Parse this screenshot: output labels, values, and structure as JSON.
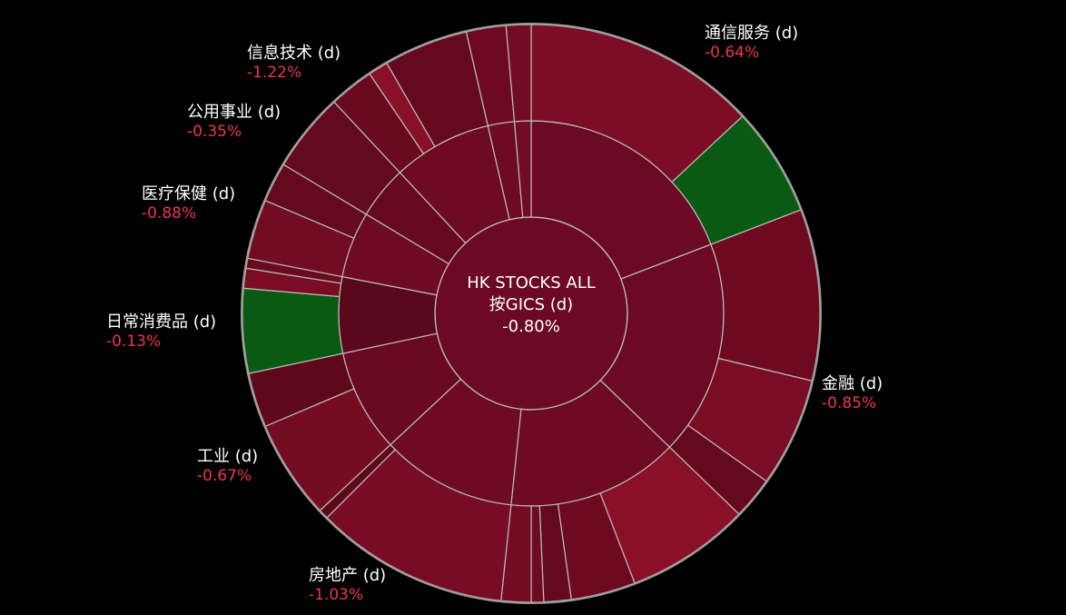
{
  "chart_data": {
    "type": "sunburst",
    "title": "HK STOCKS ALL",
    "subtitle": "按GICS (d)",
    "total_change": -0.8,
    "total_change_label": "-0.80%",
    "root_color": "#6b0a22",
    "change_color": "#e8394a",
    "categories": [
      "通信服务 (d)",
      "金融 (d)",
      null,
      "房地产 (d)",
      "工业 (d)",
      "日常消费品 (d)",
      "医疗保健 (d)",
      "公用事业 (d)",
      "信息技术 (d)",
      null,
      null
    ],
    "values": [
      69,
      65,
      52,
      41,
      31,
      23,
      20,
      16,
      30,
      8,
      5
    ],
    "changes": [
      -0.64,
      -0.85,
      null,
      -1.03,
      -0.67,
      -0.13,
      -0.88,
      -0.35,
      -1.22,
      null,
      null
    ],
    "change_labels": [
      "-0.64%",
      "-0.85%",
      null,
      "-1.03%",
      "-0.67%",
      "-0.13%",
      "-0.88%",
      "-0.35%",
      "-1.22%",
      null,
      null
    ],
    "colors": [
      "#6b0a22",
      "#6b0a22",
      "#6e0a22",
      "#6e0a22",
      "#6a0a20",
      "#5a081c",
      "#6e0a22",
      "#66091f",
      "#6e0a22",
      "#6e0a22",
      "#720c24"
    ],
    "children": [
      {
        "values": [
          47,
          22
        ],
        "colors": [
          "#7b0d25",
          "#0a5a14"
        ]
      },
      {
        "values": [
          34.5,
          22,
          8.5
        ],
        "colors": [
          "#6d0a20",
          "#7a0c24",
          "#650a1e"
        ]
      },
      {
        "values": [
          25,
          13,
          5.5,
          2.5,
          6
        ],
        "colors": [
          "#8a1028",
          "#6e0a20",
          "#650a1e",
          "#6e0a22",
          "#760c24"
        ]
      },
      {
        "values": [
          39,
          2
        ],
        "colors": [
          "#780c24",
          "#5e081c"
        ]
      },
      {
        "values": [
          20,
          11
        ],
        "colors": [
          "#760c22",
          "#5e081c"
        ]
      },
      {
        "values": [
          17,
          4,
          2
        ],
        "colors": [
          "#0a5a14",
          "#7a0c24",
          "#6a0a1e"
        ]
      },
      {
        "values": [
          12,
          8
        ],
        "colors": [
          "#720c22",
          "#650a1e"
        ]
      },
      {
        "values": [
          16
        ],
        "colors": [
          "#640a1e"
        ]
      },
      {
        "values": [
          9,
          4,
          17
        ],
        "colors": [
          "#6a0a1e",
          "#8a1028",
          "#650a1e"
        ]
      },
      {
        "values": [
          8
        ],
        "colors": [
          "#6d0a22"
        ]
      },
      {
        "values": [
          5
        ],
        "colors": [
          "#720c24"
        ]
      }
    ]
  }
}
